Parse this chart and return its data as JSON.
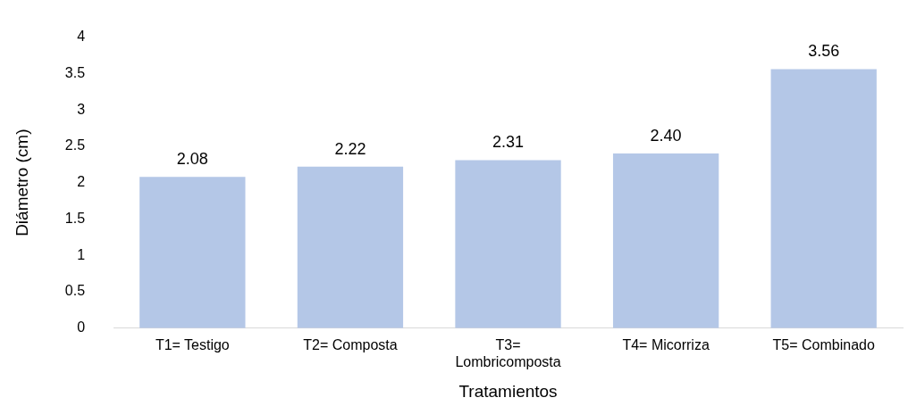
{
  "chart_data": {
    "type": "bar",
    "xlabel": "Tratamientos",
    "ylabel": "Diámetro (cm)",
    "categories": [
      "T1= Testigo",
      "T2= Composta",
      "T3= Lombricomposta",
      "T4= Micorriza",
      "T5= Combinado"
    ],
    "values": [
      2.08,
      2.22,
      2.31,
      2.4,
      3.56
    ],
    "value_labels": [
      "2.08",
      "2.22",
      "2.31",
      "2.40",
      "3.56"
    ],
    "color": "#b4c7e7",
    "ylim": [
      0,
      4
    ],
    "yticks": [
      0,
      0.5,
      1,
      1.5,
      2,
      2.5,
      3,
      3.5,
      4
    ],
    "grid": false,
    "legend": false
  }
}
